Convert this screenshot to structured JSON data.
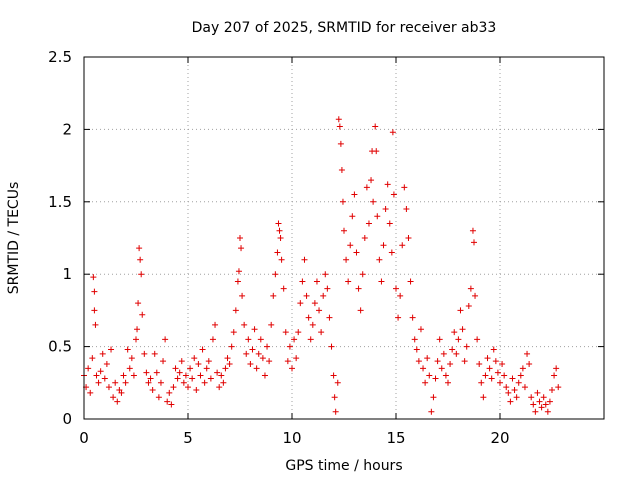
{
  "chart_data": {
    "type": "scatter",
    "title": "Day 207 of 2025, SRMTID for receiver ab33",
    "xlabel": "GPS time / hours",
    "ylabel": "SRMTID / TECUs",
    "xlim": [
      0,
      25
    ],
    "ylim": [
      0,
      2.5
    ],
    "xticks": [
      0,
      5,
      10,
      15,
      20
    ],
    "xtick_labels": [
      "0",
      "5",
      "10",
      "15",
      "20"
    ],
    "yticks": [
      0,
      0.5,
      1,
      1.5,
      2,
      2.5
    ],
    "ytick_labels": [
      "0",
      "0.5",
      "1",
      "1.5",
      "2",
      "2.5"
    ],
    "grid": true,
    "marker": "plus",
    "color": "#e00000",
    "series": [
      {
        "name": "SRMTID",
        "points": [
          [
            0.0,
            0.3
          ],
          [
            0.1,
            0.22
          ],
          [
            0.2,
            0.35
          ],
          [
            0.3,
            0.18
          ],
          [
            0.4,
            0.42
          ],
          [
            0.45,
            0.98
          ],
          [
            0.5,
            0.88
          ],
          [
            0.5,
            0.75
          ],
          [
            0.55,
            0.65
          ],
          [
            0.6,
            0.3
          ],
          [
            0.7,
            0.25
          ],
          [
            0.8,
            0.33
          ],
          [
            0.9,
            0.45
          ],
          [
            1.0,
            0.28
          ],
          [
            1.1,
            0.38
          ],
          [
            1.2,
            0.22
          ],
          [
            1.3,
            0.48
          ],
          [
            1.4,
            0.15
          ],
          [
            1.5,
            0.25
          ],
          [
            1.6,
            0.12
          ],
          [
            1.7,
            0.2
          ],
          [
            1.8,
            0.18
          ],
          [
            1.9,
            0.3
          ],
          [
            2.0,
            0.25
          ],
          [
            2.1,
            0.48
          ],
          [
            2.2,
            0.35
          ],
          [
            2.3,
            0.42
          ],
          [
            2.4,
            0.3
          ],
          [
            2.5,
            0.55
          ],
          [
            2.55,
            0.62
          ],
          [
            2.6,
            0.8
          ],
          [
            2.65,
            1.18
          ],
          [
            2.7,
            1.1
          ],
          [
            2.75,
            1.0
          ],
          [
            2.8,
            0.72
          ],
          [
            2.9,
            0.45
          ],
          [
            3.0,
            0.32
          ],
          [
            3.1,
            0.25
          ],
          [
            3.2,
            0.28
          ],
          [
            3.3,
            0.2
          ],
          [
            3.4,
            0.45
          ],
          [
            3.5,
            0.32
          ],
          [
            3.6,
            0.15
          ],
          [
            3.7,
            0.25
          ],
          [
            3.8,
            0.4
          ],
          [
            3.9,
            0.55
          ],
          [
            4.0,
            0.12
          ],
          [
            4.1,
            0.18
          ],
          [
            4.2,
            0.1
          ],
          [
            4.3,
            0.22
          ],
          [
            4.4,
            0.35
          ],
          [
            4.5,
            0.28
          ],
          [
            4.6,
            0.32
          ],
          [
            4.7,
            0.4
          ],
          [
            4.8,
            0.25
          ],
          [
            4.9,
            0.3
          ],
          [
            5.0,
            0.22
          ],
          [
            5.1,
            0.35
          ],
          [
            5.2,
            0.28
          ],
          [
            5.3,
            0.42
          ],
          [
            5.4,
            0.2
          ],
          [
            5.5,
            0.38
          ],
          [
            5.6,
            0.3
          ],
          [
            5.7,
            0.48
          ],
          [
            5.8,
            0.25
          ],
          [
            5.9,
            0.35
          ],
          [
            6.0,
            0.4
          ],
          [
            6.1,
            0.28
          ],
          [
            6.2,
            0.55
          ],
          [
            6.3,
            0.65
          ],
          [
            6.4,
            0.32
          ],
          [
            6.5,
            0.22
          ],
          [
            6.6,
            0.3
          ],
          [
            6.7,
            0.25
          ],
          [
            6.8,
            0.35
          ],
          [
            6.9,
            0.42
          ],
          [
            7.0,
            0.38
          ],
          [
            7.1,
            0.5
          ],
          [
            7.2,
            0.6
          ],
          [
            7.3,
            0.75
          ],
          [
            7.4,
            0.95
          ],
          [
            7.45,
            1.02
          ],
          [
            7.5,
            1.25
          ],
          [
            7.55,
            1.18
          ],
          [
            7.6,
            0.85
          ],
          [
            7.7,
            0.65
          ],
          [
            7.8,
            0.45
          ],
          [
            7.9,
            0.55
          ],
          [
            8.0,
            0.38
          ],
          [
            8.1,
            0.48
          ],
          [
            8.2,
            0.62
          ],
          [
            8.3,
            0.35
          ],
          [
            8.4,
            0.45
          ],
          [
            8.5,
            0.55
          ],
          [
            8.6,
            0.42
          ],
          [
            8.7,
            0.3
          ],
          [
            8.8,
            0.5
          ],
          [
            8.9,
            0.4
          ],
          [
            9.0,
            0.65
          ],
          [
            9.1,
            0.85
          ],
          [
            9.2,
            1.0
          ],
          [
            9.3,
            1.15
          ],
          [
            9.35,
            1.35
          ],
          [
            9.4,
            1.3
          ],
          [
            9.45,
            1.25
          ],
          [
            9.5,
            1.1
          ],
          [
            9.6,
            0.9
          ],
          [
            9.7,
            0.6
          ],
          [
            9.8,
            0.4
          ],
          [
            9.9,
            0.5
          ],
          [
            10.0,
            0.35
          ],
          [
            10.1,
            0.55
          ],
          [
            10.2,
            0.42
          ],
          [
            10.3,
            0.6
          ],
          [
            10.4,
            0.8
          ],
          [
            10.5,
            0.95
          ],
          [
            10.6,
            1.1
          ],
          [
            10.7,
            0.85
          ],
          [
            10.8,
            0.7
          ],
          [
            10.9,
            0.55
          ],
          [
            11.0,
            0.65
          ],
          [
            11.1,
            0.8
          ],
          [
            11.2,
            0.95
          ],
          [
            11.3,
            0.75
          ],
          [
            11.4,
            0.6
          ],
          [
            11.5,
            0.85
          ],
          [
            11.6,
            1.0
          ],
          [
            11.7,
            0.9
          ],
          [
            11.8,
            0.7
          ],
          [
            11.9,
            0.5
          ],
          [
            12.0,
            0.3
          ],
          [
            12.05,
            0.15
          ],
          [
            12.1,
            0.05
          ],
          [
            12.2,
            0.25
          ],
          [
            12.25,
            2.07
          ],
          [
            12.3,
            2.02
          ],
          [
            12.35,
            1.9
          ],
          [
            12.4,
            1.72
          ],
          [
            12.45,
            1.5
          ],
          [
            12.5,
            1.3
          ],
          [
            12.6,
            1.1
          ],
          [
            12.7,
            0.95
          ],
          [
            12.8,
            1.2
          ],
          [
            12.9,
            1.4
          ],
          [
            13.0,
            1.55
          ],
          [
            13.1,
            1.15
          ],
          [
            13.2,
            0.9
          ],
          [
            13.3,
            0.75
          ],
          [
            13.4,
            1.0
          ],
          [
            13.5,
            1.25
          ],
          [
            13.6,
            1.6
          ],
          [
            13.7,
            1.35
          ],
          [
            13.8,
            1.65
          ],
          [
            13.85,
            1.85
          ],
          [
            13.9,
            1.5
          ],
          [
            14.0,
            2.02
          ],
          [
            14.05,
            1.85
          ],
          [
            14.1,
            1.4
          ],
          [
            14.2,
            1.1
          ],
          [
            14.3,
            0.95
          ],
          [
            14.4,
            1.2
          ],
          [
            14.5,
            1.45
          ],
          [
            14.6,
            1.62
          ],
          [
            14.7,
            1.35
          ],
          [
            14.8,
            1.15
          ],
          [
            14.85,
            1.98
          ],
          [
            14.9,
            1.55
          ],
          [
            15.0,
            0.9
          ],
          [
            15.1,
            0.7
          ],
          [
            15.2,
            0.85
          ],
          [
            15.3,
            1.2
          ],
          [
            15.4,
            1.6
          ],
          [
            15.5,
            1.45
          ],
          [
            15.6,
            1.25
          ],
          [
            15.7,
            0.95
          ],
          [
            15.8,
            0.7
          ],
          [
            15.9,
            0.55
          ],
          [
            16.0,
            0.48
          ],
          [
            16.1,
            0.4
          ],
          [
            16.2,
            0.62
          ],
          [
            16.3,
            0.35
          ],
          [
            16.4,
            0.25
          ],
          [
            16.5,
            0.42
          ],
          [
            16.6,
            0.3
          ],
          [
            16.7,
            0.05
          ],
          [
            16.8,
            0.15
          ],
          [
            16.9,
            0.28
          ],
          [
            17.0,
            0.4
          ],
          [
            17.1,
            0.55
          ],
          [
            17.2,
            0.35
          ],
          [
            17.3,
            0.45
          ],
          [
            17.4,
            0.3
          ],
          [
            17.5,
            0.25
          ],
          [
            17.6,
            0.38
          ],
          [
            17.7,
            0.48
          ],
          [
            17.8,
            0.6
          ],
          [
            17.9,
            0.45
          ],
          [
            18.0,
            0.55
          ],
          [
            18.1,
            0.75
          ],
          [
            18.2,
            0.62
          ],
          [
            18.3,
            0.4
          ],
          [
            18.4,
            0.5
          ],
          [
            18.5,
            0.78
          ],
          [
            18.6,
            0.9
          ],
          [
            18.7,
            1.3
          ],
          [
            18.75,
            1.22
          ],
          [
            18.8,
            0.85
          ],
          [
            18.9,
            0.55
          ],
          [
            19.0,
            0.38
          ],
          [
            19.1,
            0.25
          ],
          [
            19.2,
            0.15
          ],
          [
            19.3,
            0.3
          ],
          [
            19.4,
            0.42
          ],
          [
            19.5,
            0.35
          ],
          [
            19.6,
            0.28
          ],
          [
            19.7,
            0.48
          ],
          [
            19.8,
            0.4
          ],
          [
            19.9,
            0.32
          ],
          [
            20.0,
            0.25
          ],
          [
            20.1,
            0.38
          ],
          [
            20.2,
            0.3
          ],
          [
            20.3,
            0.22
          ],
          [
            20.4,
            0.18
          ],
          [
            20.5,
            0.12
          ],
          [
            20.6,
            0.28
          ],
          [
            20.7,
            0.2
          ],
          [
            20.8,
            0.15
          ],
          [
            20.9,
            0.25
          ],
          [
            21.0,
            0.3
          ],
          [
            21.1,
            0.35
          ],
          [
            21.2,
            0.22
          ],
          [
            21.3,
            0.45
          ],
          [
            21.4,
            0.38
          ],
          [
            21.5,
            0.15
          ],
          [
            21.6,
            0.1
          ],
          [
            21.7,
            0.05
          ],
          [
            21.8,
            0.18
          ],
          [
            21.9,
            0.12
          ],
          [
            22.0,
            0.08
          ],
          [
            22.1,
            0.15
          ],
          [
            22.2,
            0.1
          ],
          [
            22.3,
            0.05
          ],
          [
            22.4,
            0.12
          ],
          [
            22.5,
            0.2
          ],
          [
            22.6,
            0.3
          ],
          [
            22.7,
            0.35
          ],
          [
            22.8,
            0.22
          ]
        ]
      }
    ]
  }
}
